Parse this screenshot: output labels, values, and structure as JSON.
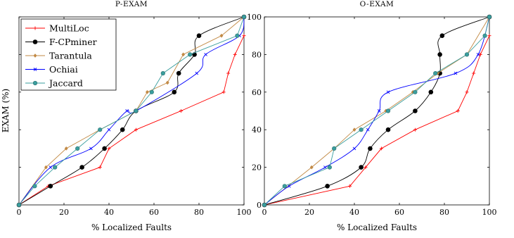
{
  "chart_data": [
    {
      "type": "line",
      "title": "P-EXAM",
      "xlabel": "% Localized Faults",
      "ylabel": "EXAM (%)",
      "xlim": [
        0,
        100
      ],
      "ylim": [
        0,
        100
      ],
      "xticks": [
        "0",
        "20",
        "40",
        "60",
        "80",
        "100"
      ],
      "legend": "top-left",
      "grid": false,
      "series": [
        {
          "name": "MultiLoc",
          "color": "#ff0000",
          "marker": "plus",
          "smooth": false,
          "x": [
            0,
            13,
            36,
            40,
            52,
            72,
            91,
            93,
            96,
            100
          ],
          "y": [
            0,
            10,
            20,
            30,
            40,
            50,
            60,
            70,
            80,
            90
          ]
        },
        {
          "name": "F-CPminer",
          "color": "#000000",
          "marker": "circle",
          "smooth": true,
          "x": [
            0,
            14,
            28,
            38,
            46,
            52,
            69,
            71,
            78,
            80,
            100
          ],
          "y": [
            0,
            10,
            20,
            30,
            40,
            50,
            60,
            70,
            80,
            90,
            100
          ]
        },
        {
          "name": "Tarantula",
          "color": "#c28a45",
          "marker": "diamond",
          "smooth": false,
          "x": [
            0,
            12,
            21,
            36,
            52,
            57,
            66,
            73,
            90,
            100
          ],
          "y": [
            0,
            20,
            30,
            40,
            50,
            60,
            65,
            80,
            90,
            100
          ]
        },
        {
          "name": "Ochiai",
          "color": "#0000ff",
          "marker": "x",
          "smooth": true,
          "x": [
            0,
            14,
            32,
            40,
            48,
            52,
            79,
            83,
            98,
            100
          ],
          "y": [
            0,
            20,
            30,
            40,
            50,
            50,
            70,
            80,
            90,
            100
          ]
        },
        {
          "name": "Jaccard",
          "color": "#3a9e9e",
          "marker": "circle",
          "smooth": false,
          "x": [
            0,
            7,
            16,
            26,
            36,
            52,
            59,
            64,
            76,
            97,
            100
          ],
          "y": [
            0,
            10,
            20,
            30,
            40,
            50,
            60,
            70,
            80,
            90,
            100
          ]
        }
      ]
    },
    {
      "type": "line",
      "title": "O-EXAM",
      "xlabel": "% Localized Faults",
      "ylabel": "",
      "xlim": [
        0,
        100
      ],
      "ylim": [
        0,
        100
      ],
      "xticks": [
        "0",
        "20",
        "40",
        "60",
        "80",
        "100"
      ],
      "yticks": [
        "0",
        "20",
        "40",
        "60",
        "80",
        "100"
      ],
      "grid": false,
      "series": [
        {
          "name": "MultiLoc",
          "color": "#ff0000",
          "marker": "plus",
          "smooth": false,
          "x": [
            0,
            38,
            45,
            52,
            67,
            86,
            90,
            93,
            96,
            100
          ],
          "y": [
            0,
            10,
            20,
            30,
            40,
            50,
            60,
            70,
            80,
            90
          ]
        },
        {
          "name": "F-CPminer",
          "color": "#000000",
          "marker": "circle",
          "smooth": true,
          "x": [
            0,
            28,
            43,
            47,
            55,
            67,
            74,
            78,
            78,
            79,
            100
          ],
          "y": [
            0,
            10,
            20,
            30,
            40,
            50,
            60,
            70,
            80,
            90,
            100
          ]
        },
        {
          "name": "Tarantula",
          "color": "#c28a45",
          "marker": "diamond",
          "smooth": false,
          "x": [
            0,
            21,
            31,
            40,
            54,
            66,
            77,
            90,
            100
          ],
          "y": [
            0,
            20,
            30,
            40,
            50,
            60,
            70,
            80,
            100
          ]
        },
        {
          "name": "Ochiai",
          "color": "#0000ff",
          "marker": "x",
          "smooth": true,
          "x": [
            0,
            11,
            27,
            40,
            46,
            51,
            55,
            85,
            95,
            100
          ],
          "y": [
            0,
            10,
            20,
            30,
            40,
            50,
            60,
            70,
            80,
            100
          ]
        },
        {
          "name": "Jaccard",
          "color": "#3a9e9e",
          "marker": "circle",
          "smooth": false,
          "x": [
            0,
            9,
            29,
            31,
            43,
            55,
            67,
            76,
            90,
            98,
            100
          ],
          "y": [
            0,
            10,
            20,
            30,
            40,
            50,
            60,
            70,
            80,
            90,
            100
          ]
        }
      ]
    }
  ]
}
